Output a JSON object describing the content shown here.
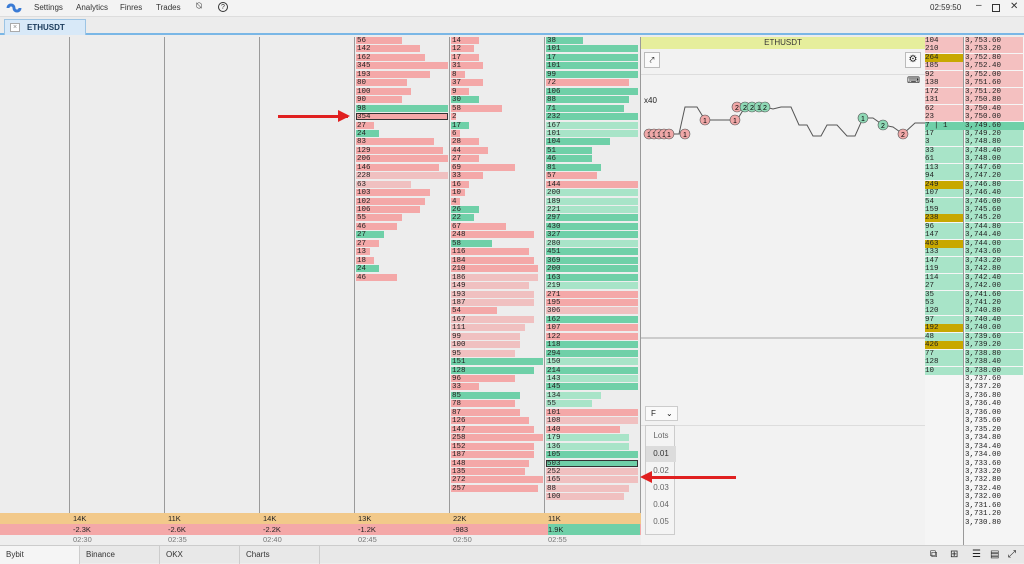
{
  "menubar": {
    "items": [
      "Settings",
      "Analytics",
      "Finres",
      "Trades"
    ],
    "time": "02:59:50"
  },
  "tab": {
    "label": "ETHUSDT"
  },
  "chart": {
    "title": "ETHUSDT",
    "zoom": "x40"
  },
  "order_entry": {
    "mode": "F",
    "lots_label": "Lots",
    "lots": [
      "0.01",
      "0.02",
      "0.03",
      "0.04",
      "0.05"
    ]
  },
  "cluster1": [
    [
      "56",
      "p",
      0.5
    ],
    [
      "142",
      "p",
      0.7
    ],
    [
      "162",
      "p",
      0.75
    ],
    [
      "345",
      "p",
      1
    ],
    [
      "193",
      "p",
      0.8
    ],
    [
      "80",
      "p",
      0.55
    ],
    [
      "100",
      "p",
      0.6
    ],
    [
      "90",
      "p",
      0.5
    ],
    [
      "98",
      "g",
      1
    ],
    [
      "354",
      "s",
      1
    ],
    [
      "27",
      "p",
      0.2
    ],
    [
      "24",
      "g",
      0.25
    ],
    [
      "83",
      "p",
      0.85
    ],
    [
      "129",
      "p",
      0.95
    ],
    [
      "206",
      "p",
      1
    ],
    [
      "146",
      "p",
      0.9
    ],
    [
      "228",
      "lp",
      1
    ],
    [
      "63",
      "lp",
      0.6
    ],
    [
      "103",
      "p",
      0.8
    ],
    [
      "102",
      "p",
      0.75
    ],
    [
      "106",
      "p",
      0.7
    ],
    [
      "55",
      "p",
      0.5
    ],
    [
      "46",
      "p",
      0.45
    ],
    [
      "27",
      "g",
      0.3
    ],
    [
      "27",
      "p",
      0.25
    ],
    [
      "13",
      "p",
      0.15
    ],
    [
      "18",
      "p",
      0.2
    ],
    [
      "24",
      "g",
      0.25
    ],
    [
      "46",
      "p",
      0.45
    ]
  ],
  "cluster2": [
    [
      "14",
      "p",
      0.3
    ],
    [
      "12",
      "p",
      0.25
    ],
    [
      "17",
      "p",
      0.3
    ],
    [
      "31",
      "p",
      0.35
    ],
    [
      "8",
      "p",
      0.15
    ],
    [
      "37",
      "p",
      0.35
    ],
    [
      "9",
      "p",
      0.2
    ],
    [
      "30",
      "g",
      0.3
    ],
    [
      "58",
      "p",
      0.55
    ],
    [
      "2",
      "p",
      0.05
    ],
    [
      "17",
      "g",
      0.2
    ],
    [
      "6",
      "p",
      0.1
    ],
    [
      "28",
      "p",
      0.3
    ],
    [
      "44",
      "p",
      0.4
    ],
    [
      "27",
      "p",
      0.3
    ],
    [
      "69",
      "p",
      0.7
    ],
    [
      "33",
      "p",
      0.35
    ],
    [
      "16",
      "p",
      0.2
    ],
    [
      "10",
      "p",
      0.15
    ],
    [
      "4",
      "p",
      0.1
    ],
    [
      "26",
      "g",
      0.3
    ],
    [
      "22",
      "g",
      0.25
    ],
    [
      "67",
      "p",
      0.6
    ],
    [
      "248",
      "p",
      0.9
    ],
    [
      "58",
      "g",
      0.45
    ],
    [
      "116",
      "p",
      0.85
    ],
    [
      "184",
      "p",
      0.9
    ],
    [
      "210",
      "p",
      0.95
    ],
    [
      "186",
      "lp",
      0.95
    ],
    [
      "149",
      "lp",
      0.85
    ],
    [
      "193",
      "lp",
      0.9
    ],
    [
      "187",
      "lp",
      0.9
    ],
    [
      "54",
      "p",
      0.5
    ],
    [
      "167",
      "lp",
      0.9
    ],
    [
      "111",
      "lp",
      0.8
    ],
    [
      "99",
      "lp",
      0.75
    ],
    [
      "100",
      "lp",
      0.75
    ],
    [
      "95",
      "lp",
      0.7
    ],
    [
      "151",
      "g",
      1
    ],
    [
      "128",
      "g",
      0.9
    ],
    [
      "96",
      "p",
      0.7
    ],
    [
      "33",
      "p",
      0.3
    ],
    [
      "85",
      "g",
      0.75
    ],
    [
      "78",
      "p",
      0.7
    ],
    [
      "87",
      "p",
      0.75
    ],
    [
      "126",
      "p",
      0.85
    ],
    [
      "147",
      "p",
      0.9
    ],
    [
      "258",
      "p",
      1
    ],
    [
      "152",
      "p",
      0.9
    ],
    [
      "187",
      "p",
      0.9
    ],
    [
      "148",
      "p",
      0.85
    ],
    [
      "135",
      "p",
      0.8
    ],
    [
      "272",
      "p",
      1
    ],
    [
      "257",
      "p",
      0.95
    ]
  ],
  "cluster3": [
    [
      "38",
      "g",
      0.4
    ],
    [
      "101",
      "g",
      1
    ],
    [
      "17",
      "g",
      1
    ],
    [
      "101",
      "g",
      1
    ],
    [
      "99",
      "g",
      1
    ],
    [
      "72",
      "p",
      0.9
    ],
    [
      "106",
      "g",
      1
    ],
    [
      "88",
      "g",
      0.9
    ],
    [
      "71",
      "g",
      0.85
    ],
    [
      "232",
      "g",
      1
    ],
    [
      "167",
      "lg",
      1
    ],
    [
      "101",
      "lg",
      1
    ],
    [
      "104",
      "g",
      0.7
    ],
    [
      "51",
      "g",
      0.5
    ],
    [
      "46",
      "g",
      0.5
    ],
    [
      "81",
      "g",
      0.6
    ],
    [
      "57",
      "p",
      0.55
    ],
    [
      "144",
      "p",
      1
    ],
    [
      "200",
      "lg",
      1
    ],
    [
      "189",
      "lg",
      1
    ],
    [
      "221",
      "lg",
      1
    ],
    [
      "297",
      "g",
      1
    ],
    [
      "430",
      "g",
      1
    ],
    [
      "327",
      "g",
      1
    ],
    [
      "280",
      "lg",
      1
    ],
    [
      "451",
      "g",
      1
    ],
    [
      "369",
      "g",
      1
    ],
    [
      "200",
      "g",
      1
    ],
    [
      "163",
      "g",
      1
    ],
    [
      "219",
      "lg",
      1
    ],
    [
      "271",
      "p",
      1
    ],
    [
      "195",
      "p",
      1
    ],
    [
      "306",
      "lp",
      1
    ],
    [
      "162",
      "g",
      1
    ],
    [
      "107",
      "p",
      1
    ],
    [
      "122",
      "p",
      1
    ],
    [
      "118",
      "g",
      1
    ],
    [
      "294",
      "g",
      1
    ],
    [
      "150",
      "lg",
      1
    ],
    [
      "214",
      "g",
      1
    ],
    [
      "143",
      "lg",
      1
    ],
    [
      "145",
      "g",
      1
    ],
    [
      "134",
      "lg",
      0.6
    ],
    [
      "55",
      "lg",
      0.5
    ],
    [
      "101",
      "p",
      1
    ],
    [
      "108",
      "lp",
      1
    ],
    [
      "140",
      "p",
      0.8
    ],
    [
      "179",
      "lg",
      0.9
    ],
    [
      "136",
      "lg",
      0.9
    ],
    [
      "105",
      "g",
      1
    ],
    [
      "503",
      "s2",
      1
    ],
    [
      "252",
      "lp",
      1
    ],
    [
      "165",
      "lp",
      1
    ],
    [
      "88",
      "lp",
      0.9
    ],
    [
      "100",
      "lp",
      0.85
    ]
  ],
  "bottom_volume": [
    "14K",
    "11K",
    "14K",
    "13K",
    "22K",
    "11K"
  ],
  "bottom_delta": [
    "-2.3K",
    "-2.6K",
    "-2.2K",
    "-1.2K",
    "-983",
    "1.9K"
  ],
  "times": [
    "02:30",
    "02:35",
    "02:40",
    "02:45",
    "02:50",
    "02:55"
  ],
  "dom": [
    [
      "104",
      "p",
      "3,753.60"
    ],
    [
      "210",
      "p",
      "3,753.20"
    ],
    [
      "264",
      "y",
      "3,752.80"
    ],
    [
      "185",
      "p",
      "3,752.40"
    ],
    [
      "92",
      "p",
      "3,752.00"
    ],
    [
      "138",
      "p",
      "3,751.60"
    ],
    [
      "172",
      "p",
      "3,751.20"
    ],
    [
      "131",
      "p",
      "3,750.80"
    ],
    [
      "62",
      "p",
      "3,750.40"
    ],
    [
      "23",
      "p",
      "3,750.00"
    ],
    [
      "7 | 1",
      "cur",
      "3,749.60"
    ],
    [
      "17",
      "g",
      "3,749.20"
    ],
    [
      "3",
      "g",
      "3,748.80"
    ],
    [
      "33",
      "g",
      "3,748.40"
    ],
    [
      "61",
      "g",
      "3,748.00"
    ],
    [
      "113",
      "g",
      "3,747.60"
    ],
    [
      "94",
      "g",
      "3,747.20"
    ],
    [
      "249",
      "y",
      "3,746.80"
    ],
    [
      "107",
      "g",
      "3,746.40"
    ],
    [
      "54",
      "g",
      "3,746.00"
    ],
    [
      "159",
      "g",
      "3,745.60"
    ],
    [
      "238",
      "y",
      "3,745.20"
    ],
    [
      "96",
      "g",
      "3,744.80"
    ],
    [
      "147",
      "g",
      "3,744.40"
    ],
    [
      "463",
      "y",
      "3,744.00"
    ],
    [
      "133",
      "g",
      "3,743.60"
    ],
    [
      "147",
      "g",
      "3,743.20"
    ],
    [
      "119",
      "g",
      "3,742.80"
    ],
    [
      "114",
      "g",
      "3,742.40"
    ],
    [
      "27",
      "g",
      "3,742.00"
    ],
    [
      "35",
      "g",
      "3,741.60"
    ],
    [
      "53",
      "g",
      "3,741.20"
    ],
    [
      "120",
      "g",
      "3,740.80"
    ],
    [
      "97",
      "g",
      "3,740.40"
    ],
    [
      "192",
      "y",
      "3,740.00"
    ],
    [
      "48",
      "g",
      "3,739.60"
    ],
    [
      "426",
      "y",
      "3,739.20"
    ],
    [
      "77",
      "g",
      "3,738.80"
    ],
    [
      "128",
      "g",
      "3,738.40"
    ],
    [
      "10",
      "g",
      "3,738.00"
    ],
    [
      "",
      "n",
      "3,737.60"
    ],
    [
      "",
      "n",
      "3,737.20"
    ],
    [
      "",
      "n",
      "3,736.80"
    ],
    [
      "",
      "n",
      "3,736.40"
    ],
    [
      "",
      "n",
      "3,736.00"
    ],
    [
      "",
      "n",
      "3,735.60"
    ],
    [
      "",
      "n",
      "3,735.20"
    ],
    [
      "",
      "n",
      "3,734.80"
    ],
    [
      "",
      "n",
      "3,734.40"
    ],
    [
      "",
      "n",
      "3,734.00"
    ],
    [
      "",
      "n",
      "3,733.60"
    ],
    [
      "",
      "n",
      "3,733.20"
    ],
    [
      "",
      "n",
      "3,732.80"
    ],
    [
      "",
      "n",
      "3,732.40"
    ],
    [
      "",
      "n",
      "3,732.00"
    ],
    [
      "",
      "n",
      "3,731.60"
    ],
    [
      "",
      "n",
      "3,731.20"
    ],
    [
      "",
      "n",
      "3,730.80"
    ]
  ],
  "trade_bubbles": [
    "1",
    "1",
    "1",
    "1",
    "1",
    "1",
    "1",
    "1",
    "2",
    "2",
    "2",
    "1",
    "2",
    "1",
    "2",
    "2"
  ],
  "bottom_tabs": [
    "Bybit",
    "Binance",
    "OKX",
    "Charts"
  ]
}
